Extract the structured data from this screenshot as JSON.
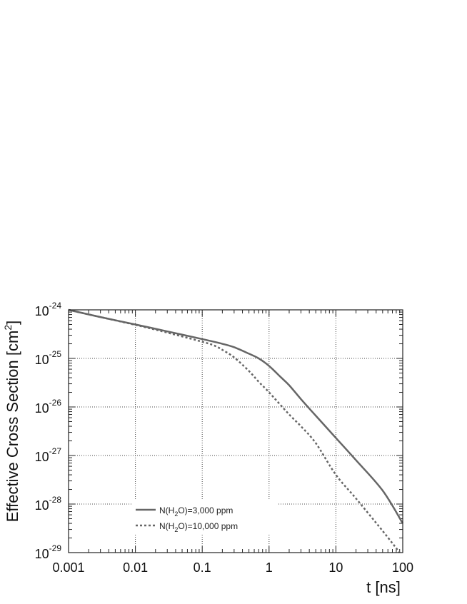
{
  "chart_data": {
    "type": "line",
    "title": "",
    "xlabel": "t [ns]",
    "ylabel_text": "Effective Cross Section [cm",
    "ylabel_sup": "2",
    "ylabel_close": "]",
    "xscale": "log",
    "yscale": "log",
    "xlim": [
      0.001,
      100
    ],
    "ylim": [
      1e-29,
      1e-24
    ],
    "grid": true,
    "legend_position": "lower-left",
    "x_ticks": [
      {
        "value": 0.001,
        "label": "0.001"
      },
      {
        "value": 0.01,
        "label": "0.01"
      },
      {
        "value": 0.1,
        "label": "0.1"
      },
      {
        "value": 1,
        "label": "1"
      },
      {
        "value": 10,
        "label": "10"
      },
      {
        "value": 100,
        "label": "100"
      }
    ],
    "y_ticks": [
      {
        "value": 1e-24,
        "base": "10",
        "exp": "-24"
      },
      {
        "value": 1e-25,
        "base": "10",
        "exp": "-25"
      },
      {
        "value": 1e-26,
        "base": "10",
        "exp": "-26"
      },
      {
        "value": 1e-27,
        "base": "10",
        "exp": "-27"
      },
      {
        "value": 1e-28,
        "base": "10",
        "exp": "-28"
      },
      {
        "value": 1e-29,
        "base": "10",
        "exp": "-29"
      }
    ],
    "series": [
      {
        "legend_prefix": "N(H",
        "legend_sub": "2",
        "legend_suffix": "O)=3,000 ppm",
        "style": "solid",
        "color": "#666666",
        "x": [
          0.001,
          0.003,
          0.01,
          0.03,
          0.1,
          0.2,
          0.3,
          0.5,
          0.7,
          1,
          1.5,
          2,
          3,
          5,
          10,
          20,
          50,
          100
        ],
        "y": [
          1e-24,
          7.1e-25,
          5e-25,
          3.6e-25,
          2.5e-25,
          2e-25,
          1.7e-25,
          1.25e-25,
          1e-25,
          7e-26,
          4.1e-26,
          2.8e-26,
          1.45e-26,
          6.6e-27,
          2.3e-27,
          8e-28,
          1.9e-28,
          4e-29
        ]
      },
      {
        "legend_prefix": "N(H",
        "legend_sub": "2",
        "legend_suffix": "O)=10,000 ppm",
        "style": "dotted",
        "color": "#666666",
        "x": [
          0.001,
          0.003,
          0.01,
          0.03,
          0.1,
          0.15,
          0.2,
          0.3,
          0.5,
          0.7,
          1,
          2,
          3,
          5,
          10,
          20,
          50,
          90
        ],
        "y": [
          1e-24,
          7.1e-25,
          4.9e-25,
          3.4e-25,
          2.2e-25,
          1.85e-25,
          1.5e-25,
          1.05e-25,
          5.5e-26,
          3.3e-26,
          2e-26,
          7e-27,
          4e-27,
          1.8e-27,
          4e-28,
          1.3e-28,
          2.8e-29,
          1e-29
        ]
      }
    ]
  }
}
